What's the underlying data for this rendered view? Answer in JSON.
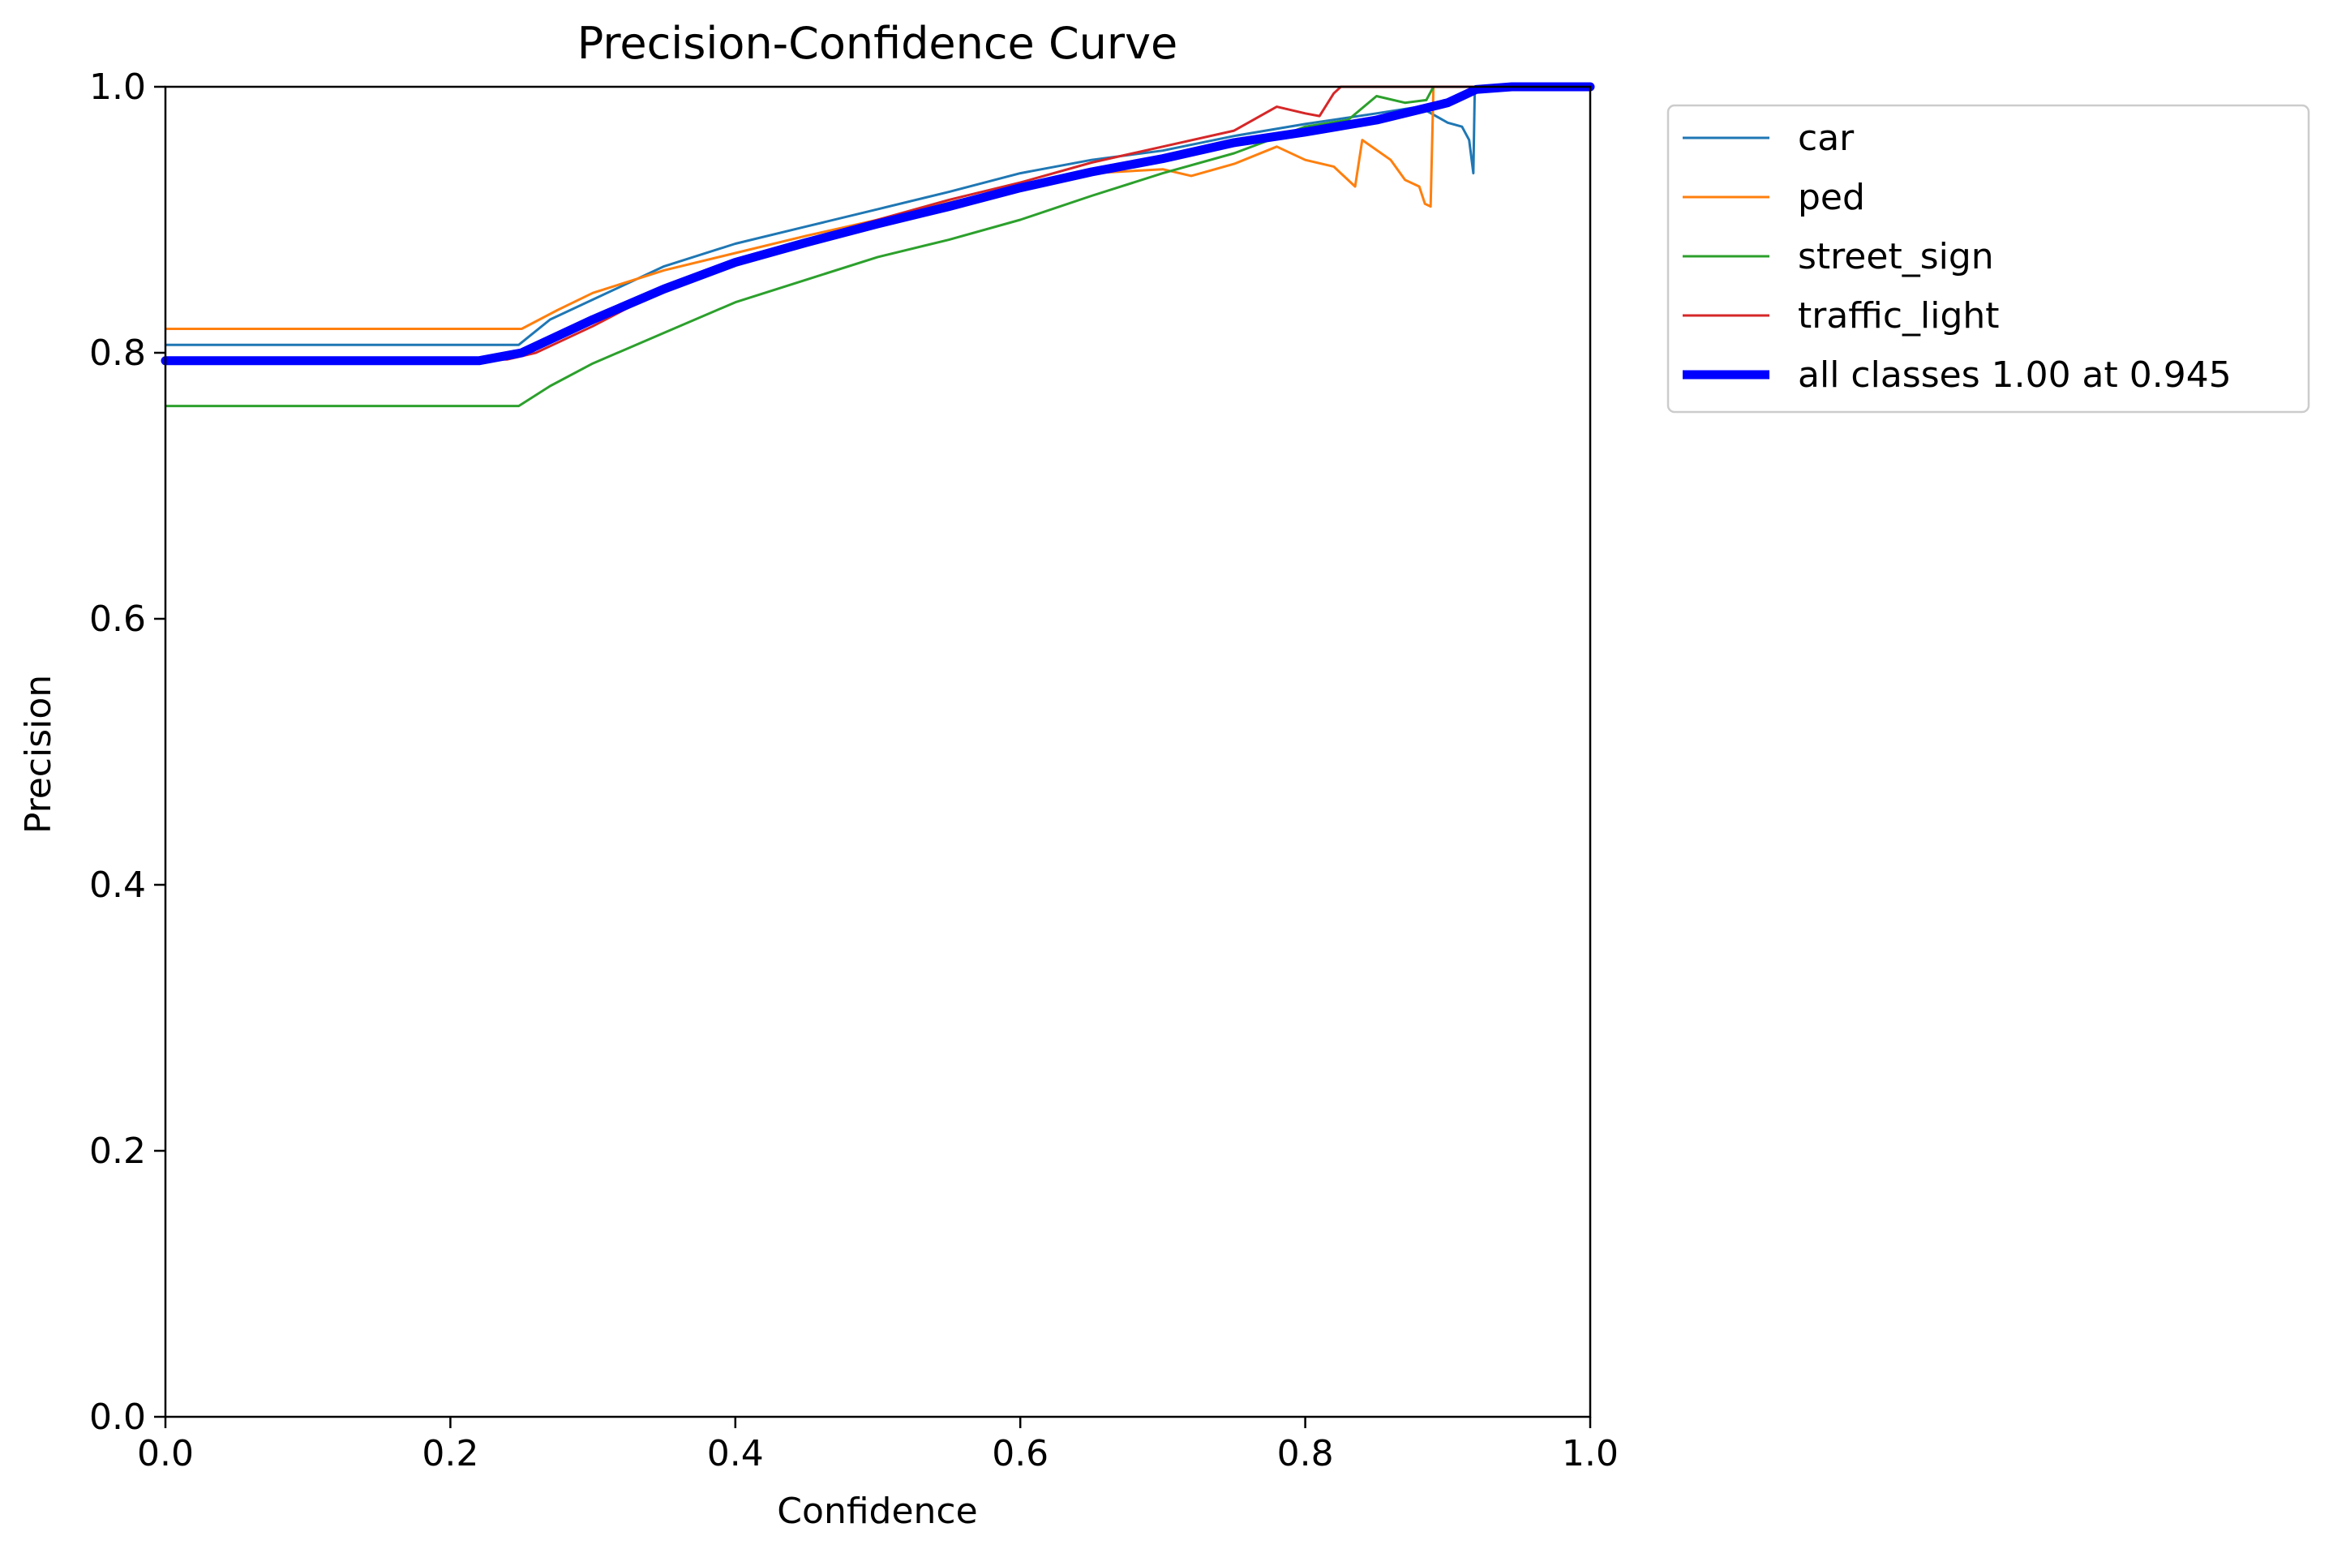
{
  "chart_data": {
    "type": "line",
    "title": "Precision-Confidence Curve",
    "xlabel": "Confidence",
    "ylabel": "Precision",
    "xlim": [
      0,
      1
    ],
    "ylim": [
      0,
      1
    ],
    "xticks": [
      "0.0",
      "0.2",
      "0.4",
      "0.6",
      "0.8",
      "1.0"
    ],
    "yticks": [
      "0.0",
      "0.2",
      "0.4",
      "0.6",
      "0.8",
      "1.0"
    ],
    "grid": false,
    "legend_position": "outside-top-right",
    "series": [
      {
        "name": "car",
        "color": "#1f77b4",
        "width": "thin",
        "x": [
          0,
          0.248,
          0.27,
          0.3,
          0.35,
          0.4,
          0.45,
          0.5,
          0.55,
          0.6,
          0.65,
          0.7,
          0.75,
          0.8,
          0.85,
          0.88,
          0.9,
          0.91,
          0.915,
          0.918,
          0.919,
          0.92,
          0.93,
          1.0
        ],
        "y": [
          0.806,
          0.806,
          0.825,
          0.84,
          0.865,
          0.882,
          0.895,
          0.908,
          0.921,
          0.935,
          0.945,
          0.952,
          0.963,
          0.972,
          0.98,
          0.985,
          0.973,
          0.97,
          0.96,
          0.935,
          1.0,
          0.997,
          1.0,
          1.0
        ]
      },
      {
        "name": "ped",
        "color": "#ff7f0e",
        "width": "thin",
        "x": [
          0,
          0.25,
          0.275,
          0.3,
          0.35,
          0.4,
          0.45,
          0.5,
          0.55,
          0.6,
          0.65,
          0.7,
          0.72,
          0.75,
          0.78,
          0.8,
          0.82,
          0.835,
          0.84,
          0.86,
          0.87,
          0.88,
          0.884,
          0.888,
          0.89,
          1.0
        ],
        "y": [
          0.818,
          0.818,
          0.832,
          0.845,
          0.862,
          0.875,
          0.888,
          0.9,
          0.913,
          0.925,
          0.935,
          0.938,
          0.933,
          0.942,
          0.955,
          0.945,
          0.94,
          0.925,
          0.96,
          0.945,
          0.93,
          0.925,
          0.912,
          0.91,
          1.0,
          1.0
        ]
      },
      {
        "name": "street_sign",
        "color": "#2ca02c",
        "width": "thin",
        "x": [
          0,
          0.248,
          0.27,
          0.3,
          0.35,
          0.4,
          0.45,
          0.5,
          0.55,
          0.6,
          0.65,
          0.7,
          0.75,
          0.8,
          0.83,
          0.85,
          0.87,
          0.885,
          0.89,
          1.0
        ],
        "y": [
          0.76,
          0.76,
          0.775,
          0.792,
          0.815,
          0.838,
          0.855,
          0.872,
          0.885,
          0.9,
          0.918,
          0.935,
          0.95,
          0.97,
          0.975,
          0.993,
          0.988,
          0.99,
          1.0,
          1.0
        ]
      },
      {
        "name": "traffic_light",
        "color": "#d62728",
        "width": "thin",
        "x": [
          0,
          0.24,
          0.26,
          0.3,
          0.35,
          0.4,
          0.45,
          0.5,
          0.55,
          0.6,
          0.65,
          0.7,
          0.75,
          0.78,
          0.8,
          0.81,
          0.82,
          0.825,
          0.826,
          1.0
        ],
        "y": [
          0.795,
          0.795,
          0.8,
          0.82,
          0.848,
          0.87,
          0.885,
          0.9,
          0.915,
          0.928,
          0.943,
          0.955,
          0.967,
          0.985,
          0.98,
          0.978,
          0.995,
          1.0,
          1.0,
          1.0
        ]
      },
      {
        "name": "all classes 1.00 at 0.945",
        "color": "#0000ff",
        "width": "thick",
        "x": [
          0,
          0.22,
          0.25,
          0.3,
          0.35,
          0.4,
          0.45,
          0.5,
          0.55,
          0.6,
          0.65,
          0.7,
          0.75,
          0.8,
          0.85,
          0.9,
          0.92,
          0.945,
          1.0
        ],
        "y": [
          0.794,
          0.794,
          0.8,
          0.825,
          0.848,
          0.868,
          0.883,
          0.897,
          0.91,
          0.924,
          0.936,
          0.946,
          0.958,
          0.966,
          0.975,
          0.988,
          0.998,
          1.0,
          1.0
        ]
      }
    ]
  }
}
